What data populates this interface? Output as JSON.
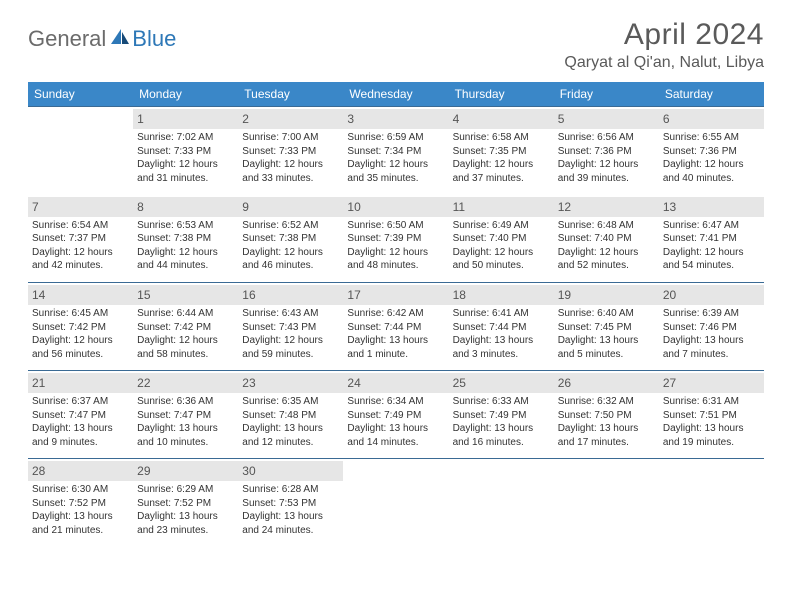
{
  "logo": {
    "text_general": "General",
    "text_blue": "Blue"
  },
  "title": "April 2024",
  "location": "Qaryat al Qi'an, Nalut, Libya",
  "colors": {
    "header_bg": "#3a87c8",
    "header_text": "#ffffff",
    "row_divider": "#3a6a94",
    "daynum_bg": "#e6e6e6",
    "body_text": "#333333",
    "title_text": "#5a5a5a",
    "logo_gray": "#6b6b6b",
    "logo_blue": "#2e78b7",
    "page_bg": "#ffffff"
  },
  "weekdays": [
    "Sunday",
    "Monday",
    "Tuesday",
    "Wednesday",
    "Thursday",
    "Friday",
    "Saturday"
  ],
  "weeks": [
    [
      null,
      {
        "n": "1",
        "sr": "Sunrise: 7:02 AM",
        "ss": "Sunset: 7:33 PM",
        "d1": "Daylight: 12 hours",
        "d2": "and 31 minutes."
      },
      {
        "n": "2",
        "sr": "Sunrise: 7:00 AM",
        "ss": "Sunset: 7:33 PM",
        "d1": "Daylight: 12 hours",
        "d2": "and 33 minutes."
      },
      {
        "n": "3",
        "sr": "Sunrise: 6:59 AM",
        "ss": "Sunset: 7:34 PM",
        "d1": "Daylight: 12 hours",
        "d2": "and 35 minutes."
      },
      {
        "n": "4",
        "sr": "Sunrise: 6:58 AM",
        "ss": "Sunset: 7:35 PM",
        "d1": "Daylight: 12 hours",
        "d2": "and 37 minutes."
      },
      {
        "n": "5",
        "sr": "Sunrise: 6:56 AM",
        "ss": "Sunset: 7:36 PM",
        "d1": "Daylight: 12 hours",
        "d2": "and 39 minutes."
      },
      {
        "n": "6",
        "sr": "Sunrise: 6:55 AM",
        "ss": "Sunset: 7:36 PM",
        "d1": "Daylight: 12 hours",
        "d2": "and 40 minutes."
      }
    ],
    [
      {
        "n": "7",
        "sr": "Sunrise: 6:54 AM",
        "ss": "Sunset: 7:37 PM",
        "d1": "Daylight: 12 hours",
        "d2": "and 42 minutes."
      },
      {
        "n": "8",
        "sr": "Sunrise: 6:53 AM",
        "ss": "Sunset: 7:38 PM",
        "d1": "Daylight: 12 hours",
        "d2": "and 44 minutes."
      },
      {
        "n": "9",
        "sr": "Sunrise: 6:52 AM",
        "ss": "Sunset: 7:38 PM",
        "d1": "Daylight: 12 hours",
        "d2": "and 46 minutes."
      },
      {
        "n": "10",
        "sr": "Sunrise: 6:50 AM",
        "ss": "Sunset: 7:39 PM",
        "d1": "Daylight: 12 hours",
        "d2": "and 48 minutes."
      },
      {
        "n": "11",
        "sr": "Sunrise: 6:49 AM",
        "ss": "Sunset: 7:40 PM",
        "d1": "Daylight: 12 hours",
        "d2": "and 50 minutes."
      },
      {
        "n": "12",
        "sr": "Sunrise: 6:48 AM",
        "ss": "Sunset: 7:40 PM",
        "d1": "Daylight: 12 hours",
        "d2": "and 52 minutes."
      },
      {
        "n": "13",
        "sr": "Sunrise: 6:47 AM",
        "ss": "Sunset: 7:41 PM",
        "d1": "Daylight: 12 hours",
        "d2": "and 54 minutes."
      }
    ],
    [
      {
        "n": "14",
        "sr": "Sunrise: 6:45 AM",
        "ss": "Sunset: 7:42 PM",
        "d1": "Daylight: 12 hours",
        "d2": "and 56 minutes."
      },
      {
        "n": "15",
        "sr": "Sunrise: 6:44 AM",
        "ss": "Sunset: 7:42 PM",
        "d1": "Daylight: 12 hours",
        "d2": "and 58 minutes."
      },
      {
        "n": "16",
        "sr": "Sunrise: 6:43 AM",
        "ss": "Sunset: 7:43 PM",
        "d1": "Daylight: 12 hours",
        "d2": "and 59 minutes."
      },
      {
        "n": "17",
        "sr": "Sunrise: 6:42 AM",
        "ss": "Sunset: 7:44 PM",
        "d1": "Daylight: 13 hours",
        "d2": "and 1 minute."
      },
      {
        "n": "18",
        "sr": "Sunrise: 6:41 AM",
        "ss": "Sunset: 7:44 PM",
        "d1": "Daylight: 13 hours",
        "d2": "and 3 minutes."
      },
      {
        "n": "19",
        "sr": "Sunrise: 6:40 AM",
        "ss": "Sunset: 7:45 PM",
        "d1": "Daylight: 13 hours",
        "d2": "and 5 minutes."
      },
      {
        "n": "20",
        "sr": "Sunrise: 6:39 AM",
        "ss": "Sunset: 7:46 PM",
        "d1": "Daylight: 13 hours",
        "d2": "and 7 minutes."
      }
    ],
    [
      {
        "n": "21",
        "sr": "Sunrise: 6:37 AM",
        "ss": "Sunset: 7:47 PM",
        "d1": "Daylight: 13 hours",
        "d2": "and 9 minutes."
      },
      {
        "n": "22",
        "sr": "Sunrise: 6:36 AM",
        "ss": "Sunset: 7:47 PM",
        "d1": "Daylight: 13 hours",
        "d2": "and 10 minutes."
      },
      {
        "n": "23",
        "sr": "Sunrise: 6:35 AM",
        "ss": "Sunset: 7:48 PM",
        "d1": "Daylight: 13 hours",
        "d2": "and 12 minutes."
      },
      {
        "n": "24",
        "sr": "Sunrise: 6:34 AM",
        "ss": "Sunset: 7:49 PM",
        "d1": "Daylight: 13 hours",
        "d2": "and 14 minutes."
      },
      {
        "n": "25",
        "sr": "Sunrise: 6:33 AM",
        "ss": "Sunset: 7:49 PM",
        "d1": "Daylight: 13 hours",
        "d2": "and 16 minutes."
      },
      {
        "n": "26",
        "sr": "Sunrise: 6:32 AM",
        "ss": "Sunset: 7:50 PM",
        "d1": "Daylight: 13 hours",
        "d2": "and 17 minutes."
      },
      {
        "n": "27",
        "sr": "Sunrise: 6:31 AM",
        "ss": "Sunset: 7:51 PM",
        "d1": "Daylight: 13 hours",
        "d2": "and 19 minutes."
      }
    ],
    [
      {
        "n": "28",
        "sr": "Sunrise: 6:30 AM",
        "ss": "Sunset: 7:52 PM",
        "d1": "Daylight: 13 hours",
        "d2": "and 21 minutes."
      },
      {
        "n": "29",
        "sr": "Sunrise: 6:29 AM",
        "ss": "Sunset: 7:52 PM",
        "d1": "Daylight: 13 hours",
        "d2": "and 23 minutes."
      },
      {
        "n": "30",
        "sr": "Sunrise: 6:28 AM",
        "ss": "Sunset: 7:53 PM",
        "d1": "Daylight: 13 hours",
        "d2": "and 24 minutes."
      },
      null,
      null,
      null,
      null
    ]
  ]
}
